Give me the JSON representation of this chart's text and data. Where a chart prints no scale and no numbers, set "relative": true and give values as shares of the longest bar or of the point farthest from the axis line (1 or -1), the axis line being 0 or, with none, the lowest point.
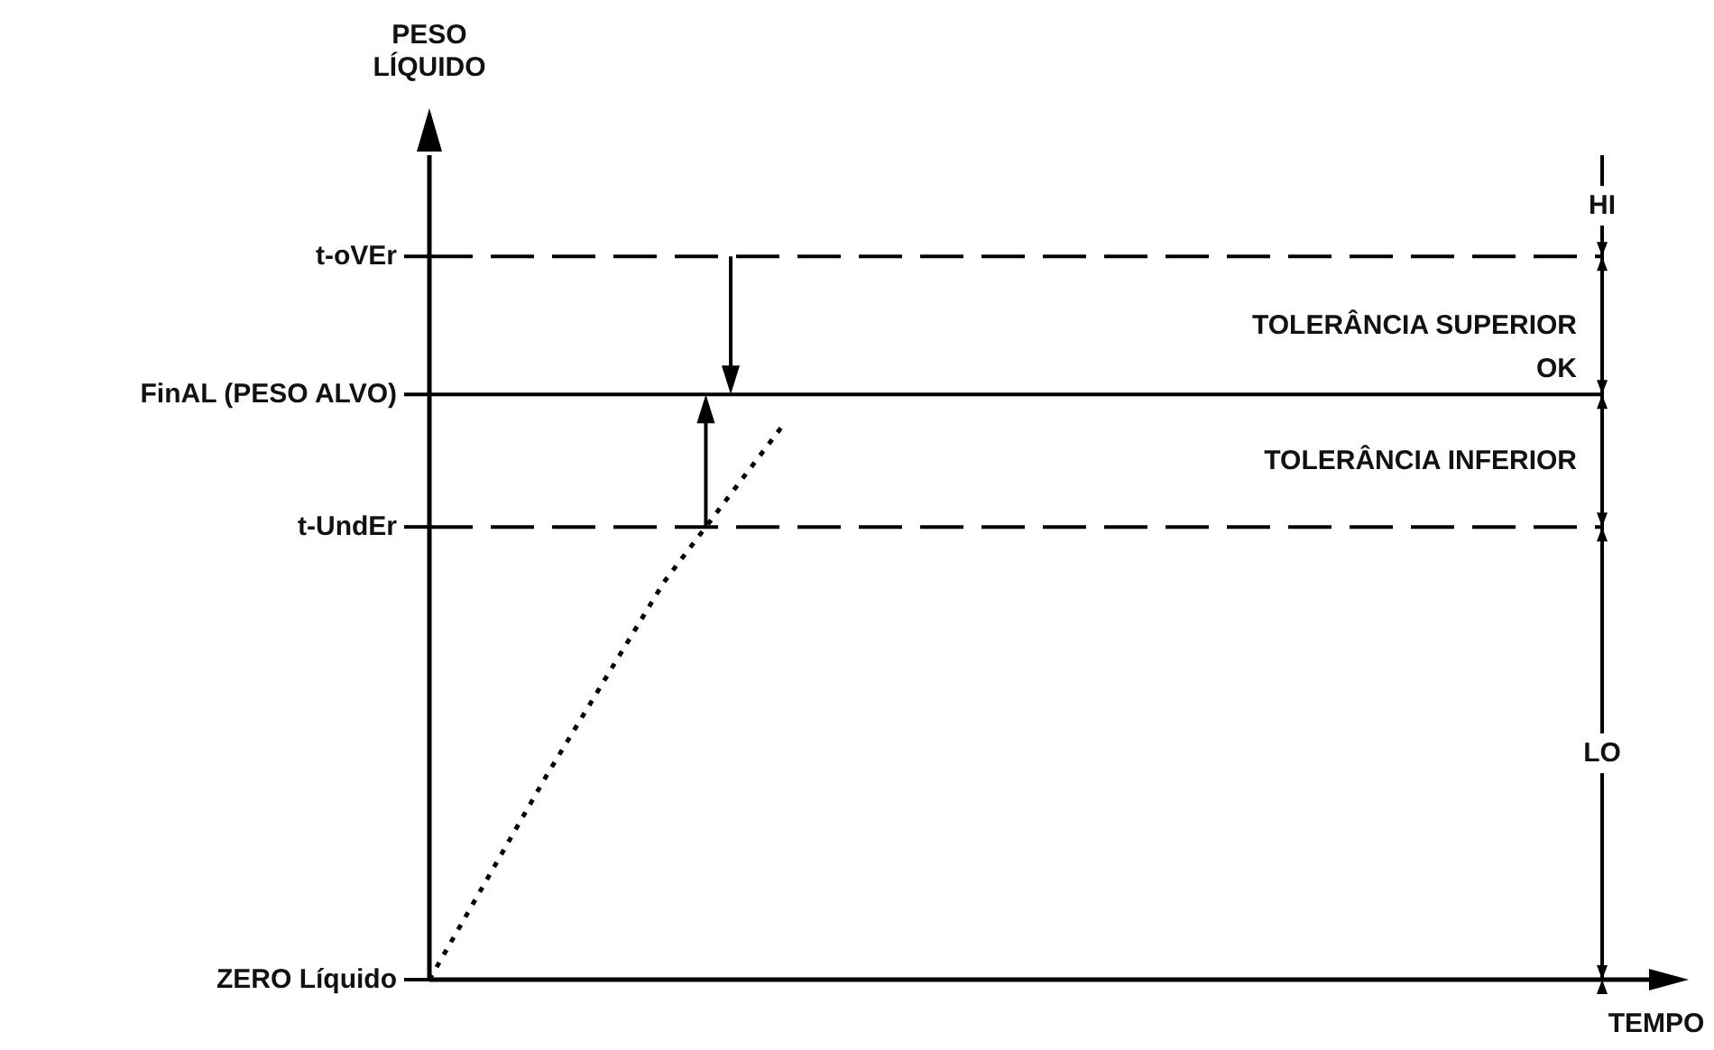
{
  "chart_data": {
    "type": "line",
    "xlabel": "TEMPO",
    "relative": true,
    "categories": [
      null,
      null,
      null,
      null,
      null,
      null,
      null,
      null,
      null,
      null,
      null
    ],
    "grid": false,
    "legend": false,
    "marker": "none",
    "series": [
      {
        "color": "#000000",
        "line_style": "dotted",
        "values": [
          0,
          0.37,
          0.72,
          1,
          null,
          null,
          null,
          null,
          null,
          null,
          null
        ]
      }
    ],
    "ref_lines": [
      {
        "axis": "y",
        "value": 1.31,
        "label": "t-oVEr",
        "color": "#000000",
        "line_style": "dashed"
      },
      {
        "axis": "y",
        "value": 1.06,
        "label": "FinAL (PESO ALVO)",
        "color": "#000000",
        "line_style": "solid"
      },
      {
        "axis": "y",
        "value": 0.82,
        "label": "t-UndEr",
        "color": "#000000",
        "line_style": "dashed"
      },
      {
        "axis": "y",
        "value": 0,
        "label": "ZERO Líquido",
        "color": "#000000",
        "line_style": "solid"
      }
    ],
    "annotations": [
      "HI",
      "TOLERÂNCIA SUPERIOR",
      "OK",
      "TOLERÂNCIA INFERIOR",
      "LO",
      "PESO LÍQUIDO"
    ]
  }
}
